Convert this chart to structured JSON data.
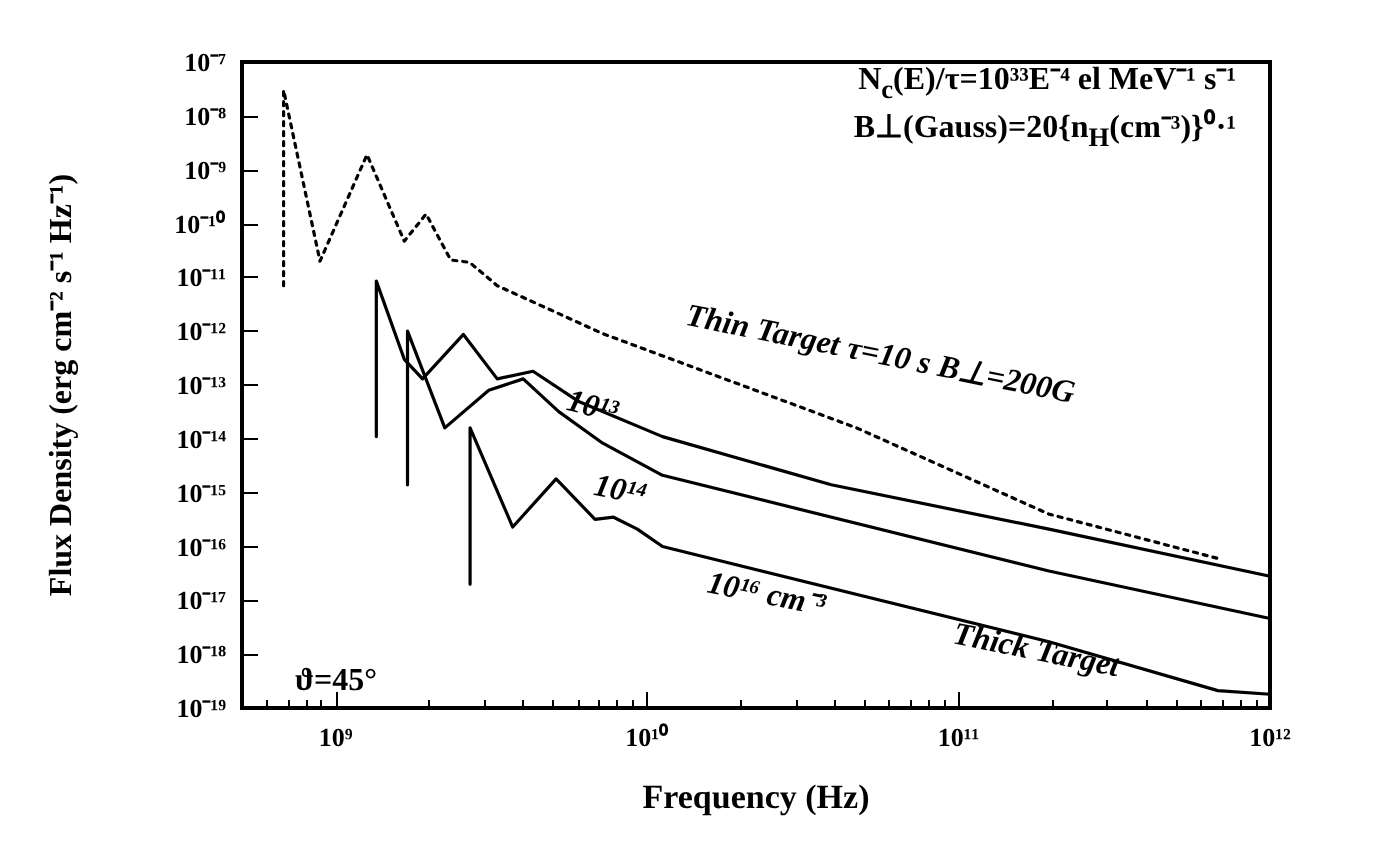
{
  "chart_data": {
    "type": "line",
    "xlabel": "Frequency (Hz)",
    "ylabel": "Flux Density (erg cm⁻² s⁻¹ Hz⁻¹)",
    "log": "xy",
    "grid": false,
    "marker": "none",
    "xlim": [
      500000000.0,
      1000000000000.0
    ],
    "xticks": [
      {
        "value": 1000000000.0,
        "label": "10⁹"
      },
      {
        "value": 10000000000.0,
        "label": "10¹⁰"
      },
      {
        "value": 100000000000.0,
        "label": "10¹¹"
      },
      {
        "value": 1000000000000.0,
        "label": "10¹²"
      }
    ],
    "ylim": [
      1e-19,
      1e-07
    ],
    "yticks": [
      {
        "value": 1e-19,
        "label": "10⁻¹⁹"
      },
      {
        "value": 1e-18,
        "label": "10⁻¹⁸"
      },
      {
        "value": 1e-17,
        "label": "10⁻¹⁷"
      },
      {
        "value": 1e-16,
        "label": "10⁻¹⁶"
      },
      {
        "value": 1e-15,
        "label": "10⁻¹⁵"
      },
      {
        "value": 1e-14,
        "label": "10⁻¹⁴"
      },
      {
        "value": 1e-13,
        "label": "10⁻¹³"
      },
      {
        "value": 1e-12,
        "label": "10⁻¹²"
      },
      {
        "value": 1e-11,
        "label": "10⁻¹¹"
      },
      {
        "value": 1e-10,
        "label": "10⁻¹⁰"
      },
      {
        "value": 1e-09,
        "label": "10⁻⁹"
      },
      {
        "value": 1e-08,
        "label": "10⁻⁸"
      },
      {
        "value": 1e-07,
        "label": "10⁻⁷"
      }
    ],
    "series": [
      {
        "color": "#000000",
        "line_style": "dotted",
        "x": [
          680000000.0,
          680000000.0,
          890000000.0,
          1260000000.0,
          1660000000.0,
          1950000000.0,
          2340000000.0,
          2690000000.0,
          3300000000.0,
          7200000000.0,
          47000000000.0,
          195000000000.0,
          680000000000.0
        ],
        "values": [
          7e-12,
          3e-08,
          2e-11,
          1.9e-09,
          4.7e-11,
          1.5e-10,
          2.1e-11,
          1.9e-11,
          7e-12,
          9e-13,
          1.6e-14,
          4e-16,
          6e-17
        ]
      },
      {
        "color": "#000000",
        "line_style": "solid",
        "x": [
          1350000000.0,
          1350000000.0,
          1660000000.0,
          1900000000.0,
          2570000000.0,
          3300000000.0,
          4300000000.0,
          6000000000.0,
          11200000000.0,
          39000000000.0,
          195000000000.0,
          1000000000000.0
        ],
        "values": [
          1.1e-14,
          8.5e-12,
          3e-13,
          1.3e-13,
          8.7e-13,
          1.3e-13,
          1.8e-13,
          5e-14,
          1.1e-14,
          1.4e-15,
          2.1e-16,
          2.8e-17
        ]
      },
      {
        "color": "#000000",
        "line_style": "solid",
        "x": [
          1700000000.0,
          1700000000.0,
          2240000000.0,
          3100000000.0,
          4000000000.0,
          5200000000.0,
          7200000000.0,
          11200000000.0,
          195000000000.0,
          1000000000000.0
        ],
        "values": [
          1.4e-15,
          1e-12,
          1.6e-14,
          8e-14,
          1.3e-13,
          3.2e-14,
          8.3e-15,
          2.1e-15,
          3.5e-17,
          4.6e-18
        ]
      },
      {
        "color": "#000000",
        "line_style": "solid",
        "x": [
          2700000000.0,
          2700000000.0,
          3700000000.0,
          5100000000.0,
          6800000000.0,
          7800000000.0,
          9300000000.0,
          11200000000.0,
          195000000000.0,
          680000000000.0,
          1000000000000.0
        ],
        "values": [
          2e-17,
          1.6e-14,
          2.3e-16,
          1.8e-15,
          3.2e-16,
          3.5e-16,
          2.1e-16,
          1e-16,
          1.7e-18,
          2.1e-19,
          1.8e-19
        ]
      }
    ],
    "annotations": [
      "N$_{c}$(E)/τ=10³³E⁻⁴ el MeV⁻¹ s⁻¹",
      "B⊥(Gauss)=20{n$_{H}$(cm⁻³)}⁰·¹",
      "ϑ=45°",
      "Thin Target  τ=10 s  B⊥=200G",
      "10¹³",
      "10¹⁴",
      "10¹⁶ cm⁻³",
      "Thick Target"
    ]
  }
}
